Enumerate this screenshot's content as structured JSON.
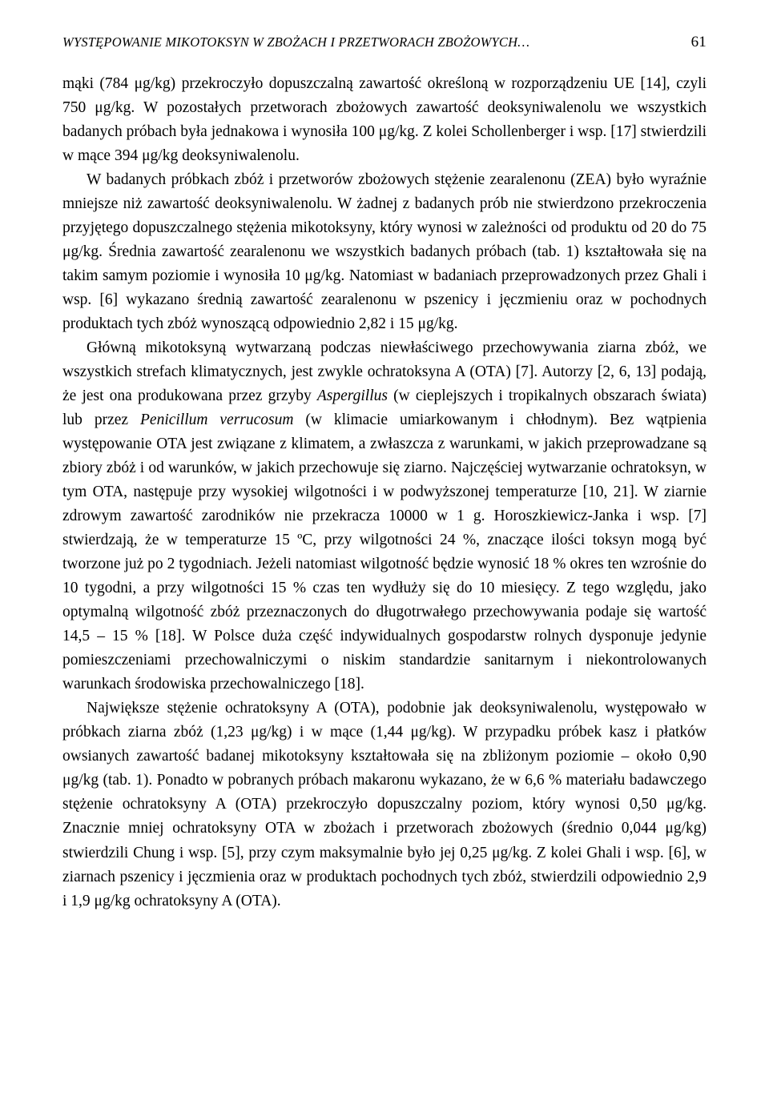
{
  "header": {
    "running_title": "WYSTĘPOWANIE MIKOTOKSYN W ZBOŻACH I PRZETWORACH ZBOŻOWYCH…",
    "page_number": "61"
  },
  "paragraphs": {
    "p1": "mąki (784 μg/kg) przekroczyło dopuszczalną zawartość określoną w rozporządzeniu UE [14], czyli 750 μg/kg. W pozostałych przetworach zbożowych zawartość deoksyniwalenolu we wszystkich badanych próbach była jednakowa i wynosiła 100 μg/kg. Z kolei Schollenberger i wsp. [17] stwierdzili w mące 394 μg/kg deoksyniwalenolu.",
    "p2": "W badanych próbkach zbóż i przetworów zbożowych stężenie zearalenonu (ZEA) było wyraźnie mniejsze niż zawartość deoksyniwalenolu. W żadnej z badanych prób nie stwierdzono przekroczenia przyjętego dopuszczalnego stężenia mikotoksyny, który wynosi w zależności od produktu od 20 do 75 μg/kg. Średnia zawartość zearalenonu we wszystkich badanych próbach (tab. 1) kształtowała się na takim samym poziomie i wynosiła 10 μg/kg. Natomiast w badaniach przeprowadzonych przez Ghali i wsp. [6] wykazano średnią zawartość zearalenonu w pszenicy i jęczmieniu oraz w pochodnych produktach tych zbóż wynoszącą odpowiednio 2,82 i 15 μg/kg.",
    "p3_a": "Główną mikotoksyną wytwarzaną podczas niewłaściwego przechowywania ziarna zbóż, we wszystkich strefach klimatycznych, jest zwykle ochratoksyna A (OTA) [7]. Autorzy [2, 6, 13] podają, że jest ona produkowana przez grzyby ",
    "p3_i1": "Aspergillus",
    "p3_b": " (w cieplejszych i tropikalnych obszarach świata) lub przez ",
    "p3_i2": "Penicillum verrucosum",
    "p3_c": " (w klimacie umiarkowanym i chłodnym). Bez wątpienia występowanie OTA jest związane z klimatem, a zwłaszcza z warunkami, w jakich przeprowadzane są zbiory zbóż i od warunków, w jakich przechowuje się ziarno. Najczęściej wytwarzanie ochratoksyn, w tym OTA, następuje przy wysokiej wilgotności i w podwyższonej temperaturze [10, 21]. W ziarnie zdrowym zawartość zarodników nie przekracza 10000 w 1 g. Horoszkiewicz-Janka i wsp. [7] stwierdzają, że w temperaturze 15 ºC, przy wilgotności 24 %, znaczące ilości toksyn mogą być tworzone już po 2 tygodniach. Jeżeli natomiast wilgotność będzie wynosić 18 % okres ten wzrośnie do 10 tygodni, a przy wilgotności 15 % czas ten wydłuży się do 10 miesięcy. Z tego względu, jako optymalną wilgotność zbóż przeznaczonych do długotrwałego przechowywania podaje się wartość 14,5 – 15 % [18]. W Polsce duża część indywidualnych gospodarstw rolnych dysponuje jedynie pomieszczeniami przechowalniczymi o niskim standardzie sanitarnym i niekontrolowanych warunkach środowiska przechowalniczego [18].",
    "p4": "Największe stężenie ochratoksyny A (OTA), podobnie jak deoksyniwalenolu, występowało w próbkach ziarna zbóż (1,23 μg/kg) i w mące (1,44 μg/kg). W przypadku próbek kasz i płatków owsianych zawartość badanej mikotoksyny kształtowała się na zbliżonym poziomie – około 0,90 μg/kg (tab. 1). Ponadto w pobranych próbach makaronu wykazano, że w 6,6 % materiału badawczego stężenie ochratoksyny A (OTA) przekroczyło dopuszczalny poziom, który wynosi 0,50 μg/kg. Znacznie mniej ochratoksyny OTA w zbożach i przetworach zbożowych (średnio 0,044 μg/kg) stwierdzili Chung i wsp. [5], przy czym maksymalnie było jej 0,25 μg/kg. Z kolei Ghali i wsp. [6], w ziarnach pszenicy i jęczmienia oraz w produktach pochodnych tych zbóż, stwierdzili odpowiednio 2,9 i 1,9 μg/kg ochratoksyny A (OTA)."
  }
}
